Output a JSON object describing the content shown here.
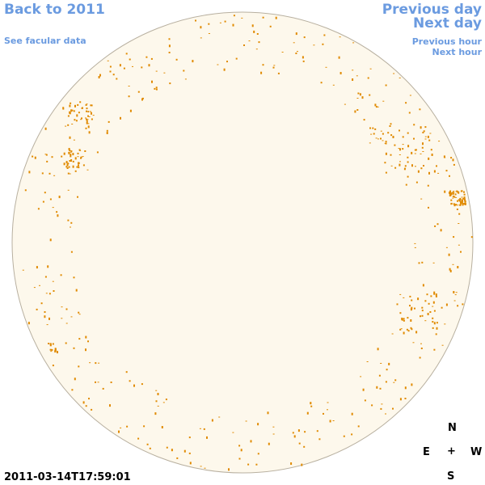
{
  "nav": {
    "back": "Back to 2011",
    "facular": "See facular data",
    "prev_day": "Previous day",
    "next_day": "Next day",
    "prev_hour": "Previous hour",
    "next_hour": "Next hour"
  },
  "compass": {
    "n": "N",
    "e": "E",
    "center": "+",
    "w": "W",
    "s": "S"
  },
  "timestamp": "2011-03-14T17:59:01"
}
